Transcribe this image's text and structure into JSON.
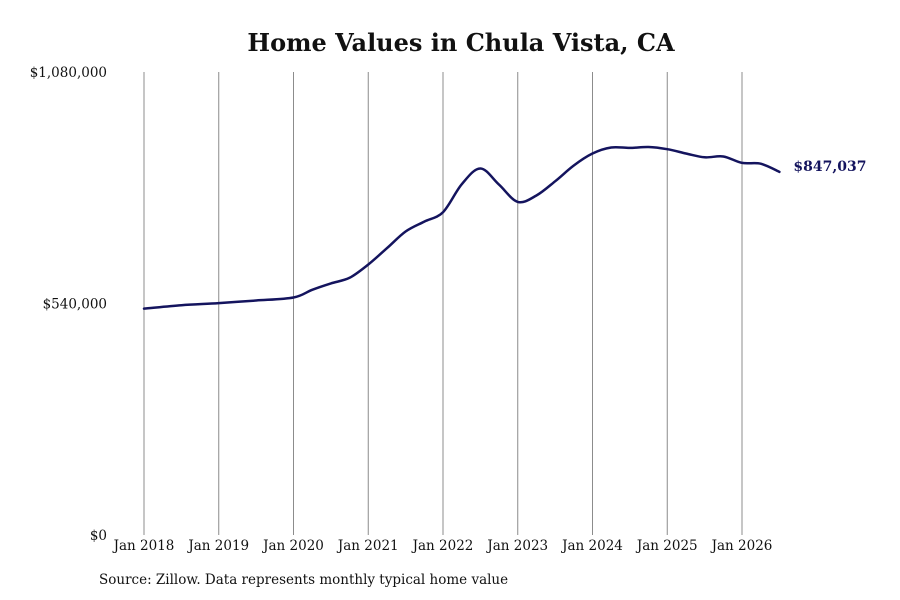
{
  "chart_data": {
    "type": "line",
    "title": "Home Values in Chula Vista, CA",
    "xlabel": "",
    "ylabel": "",
    "x_tick_labels": [
      "Jan 2018",
      "Jan 2019",
      "Jan 2020",
      "Jan 2021",
      "Jan 2022",
      "Jan 2023",
      "Jan 2024",
      "Jan 2025",
      "Jan 2026"
    ],
    "y_tick_labels": [
      "$0",
      "$540,000",
      "$1,080,000"
    ],
    "ylim": [
      0,
      1080000
    ],
    "xlim": [
      "2018-01",
      "2026-07"
    ],
    "grid": "vertical",
    "line_color": "#14145e",
    "series": [
      {
        "x": [
          "2018-01",
          "2018-07",
          "2019-01",
          "2019-07",
          "2020-01",
          "2020-04",
          "2020-07",
          "2020-10",
          "2021-01",
          "2021-04",
          "2021-07",
          "2021-10",
          "2022-01",
          "2022-04",
          "2022-07",
          "2022-10",
          "2023-01",
          "2023-04",
          "2023-07",
          "2023-10",
          "2024-01",
          "2024-04",
          "2024-07",
          "2024-10",
          "2025-01",
          "2025-04",
          "2025-07",
          "2025-10",
          "2026-01",
          "2026-04",
          "2026-07"
        ],
        "values": [
          528000,
          536000,
          541000,
          547000,
          554000,
          572000,
          587000,
          600000,
          631000,
          669000,
          708000,
          731000,
          753000,
          818000,
          855000,
          817000,
          777000,
          792000,
          825000,
          862000,
          890000,
          904000,
          903000,
          905000,
          900000,
          890000,
          881000,
          883000,
          868000,
          866000,
          847037
        ]
      }
    ],
    "end_label": "$847,037"
  },
  "footer": {
    "source": "Source: Zillow. Data represents monthly typical home value"
  }
}
